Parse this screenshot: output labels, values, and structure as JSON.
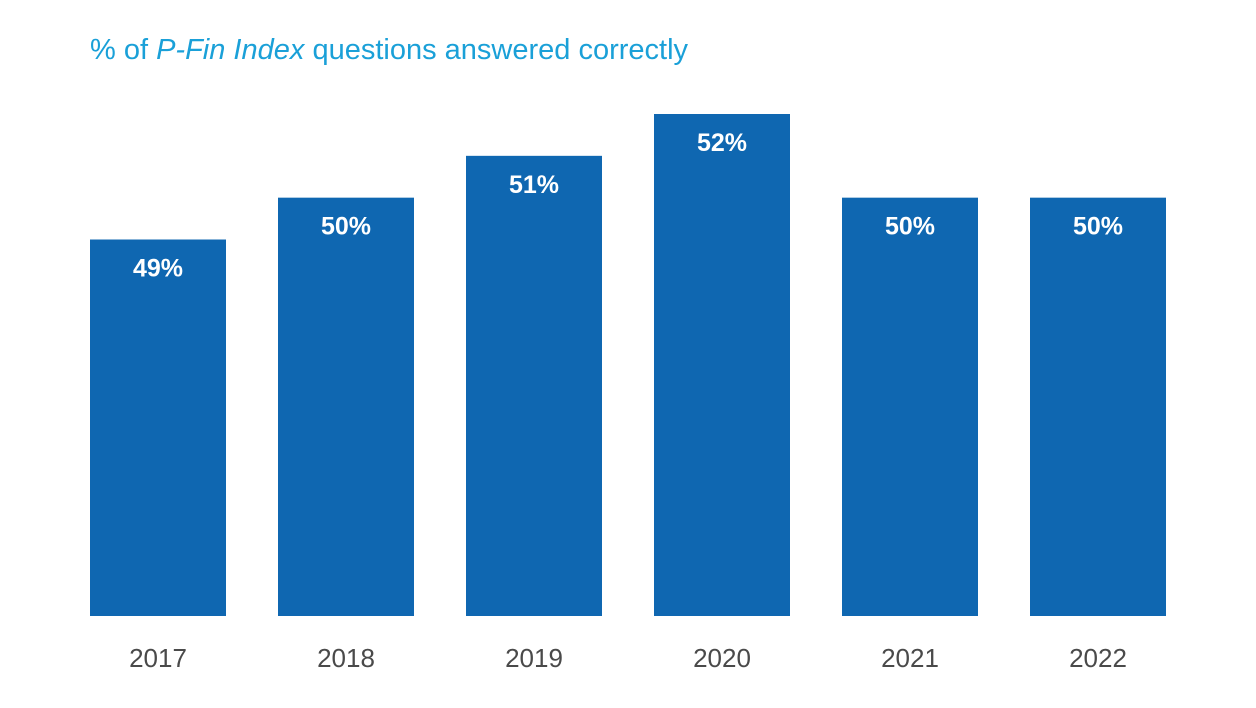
{
  "title": {
    "prefix": "% of ",
    "italic": "P-Fin Index",
    "suffix": " questions answered correctly"
  },
  "colors": {
    "title": "#1aa0d8",
    "bar": "#0f67b1",
    "label": "#ffffff",
    "tick": "#4a4a4a"
  },
  "chart_data": {
    "type": "bar",
    "title": "% of P-Fin Index questions answered correctly",
    "categories": [
      "2017",
      "2018",
      "2019",
      "2020",
      "2021",
      "2022"
    ],
    "values": [
      49,
      50,
      51,
      52,
      50,
      50
    ],
    "data_labels": [
      "49%",
      "50%",
      "51%",
      "52%",
      "50%",
      "50%"
    ],
    "xlabel": "",
    "ylabel": "",
    "ylim": [
      0,
      52
    ],
    "grid": false,
    "legend": "none"
  }
}
